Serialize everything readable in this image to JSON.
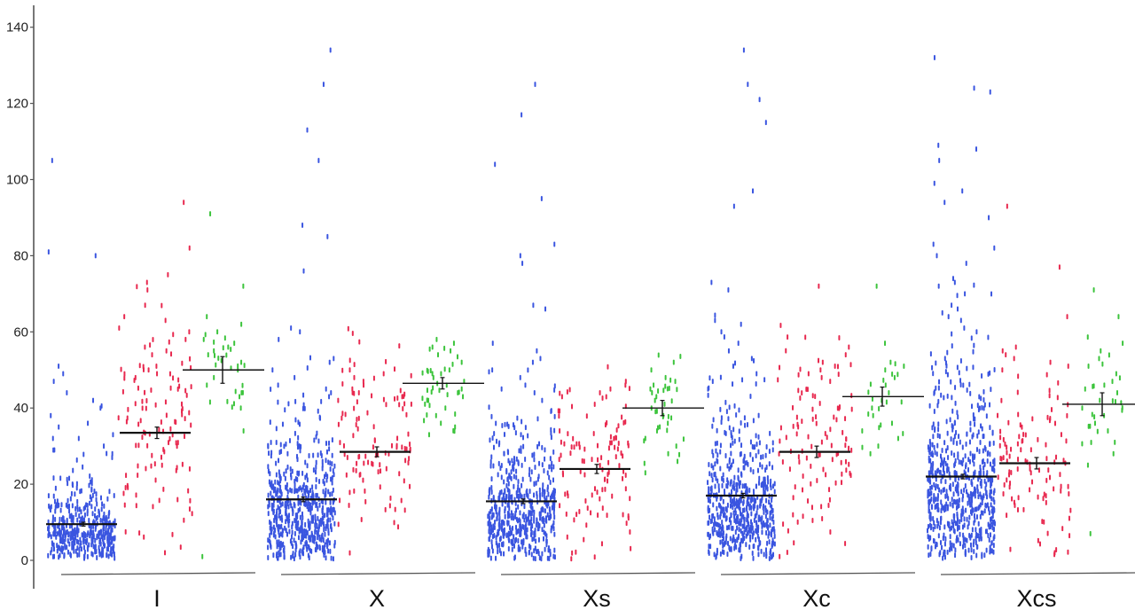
{
  "chart_data": {
    "type": "scatter",
    "subtype": "dot-strip-plot",
    "title": "",
    "xlabel": "",
    "ylabel": "",
    "ylim": [
      0,
      145
    ],
    "yticks": [
      0,
      20,
      40,
      60,
      80,
      100,
      120,
      140
    ],
    "grid": false,
    "legend": "none",
    "series_colors": [
      "#3a55e0",
      "#e8294f",
      "#3cc43c"
    ],
    "groups": [
      {
        "label": "I",
        "strips": [
          {
            "color": "#3a55e0",
            "mean": 9.5,
            "sem": 0.5,
            "count": 420,
            "outliers": [
              105,
              81,
              80,
              51,
              49,
              47,
              44,
              42,
              40,
              38,
              36,
              35,
              33,
              32,
              30,
              29,
              28,
              27
            ]
          },
          {
            "color": "#e8294f",
            "mean": 33.5,
            "sem": 1.5,
            "count": 110,
            "outliers": [
              94,
              82,
              75,
              73,
              71,
              67,
              63,
              61,
              60,
              58,
              56,
              55,
              54,
              51,
              50,
              49,
              48
            ]
          },
          {
            "color": "#3cc43c",
            "mean": 50.0,
            "sem": 3.5,
            "count": 20,
            "outliers": [
              91,
              72,
              64,
              62,
              60,
              58,
              57,
              56,
              55,
              54,
              52,
              50,
              48,
              46,
              44,
              43,
              40,
              34,
              1
            ]
          }
        ]
      },
      {
        "label": "X",
        "strips": [
          {
            "color": "#3a55e0",
            "mean": 16.0,
            "sem": 0.6,
            "count": 560,
            "outliers": [
              134,
              125,
              113,
              105,
              88,
              85,
              76,
              61,
              60,
              58,
              53,
              52,
              50,
              48,
              46,
              45,
              44,
              43
            ]
          },
          {
            "color": "#e8294f",
            "mean": 28.5,
            "sem": 1.3,
            "count": 105,
            "outliers": [
              50,
              49,
              48,
              47,
              46,
              45,
              44,
              43
            ]
          },
          {
            "color": "#3cc43c",
            "mean": 46.5,
            "sem": 1.5,
            "count": 25,
            "outliers": [
              58,
              57,
              56,
              55,
              54,
              52,
              50,
              49,
              48,
              47,
              46,
              45,
              44,
              43,
              42,
              41,
              40,
              38,
              36,
              35,
              33
            ]
          }
        ]
      },
      {
        "label": "Xs",
        "strips": [
          {
            "color": "#3a55e0",
            "mean": 15.5,
            "sem": 0.6,
            "count": 520,
            "outliers": [
              125,
              117,
              104,
              95,
              83,
              80,
              78,
              67,
              66,
              57,
              55,
              53,
              52,
              50,
              48,
              46,
              45,
              44,
              42
            ]
          },
          {
            "color": "#e8294f",
            "mean": 24.0,
            "sem": 1.2,
            "count": 110,
            "outliers": [
              47,
              46,
              45,
              44,
              43
            ]
          },
          {
            "color": "#3cc43c",
            "mean": 40.0,
            "sem": 2.0,
            "count": 22,
            "outliers": [
              52,
              50,
              48,
              47,
              46,
              45,
              44,
              43,
              42,
              41,
              40,
              38,
              36,
              34,
              32,
              30,
              28,
              26,
              23
            ]
          }
        ]
      },
      {
        "label": "Xc",
        "strips": [
          {
            "color": "#3a55e0",
            "mean": 17.0,
            "sem": 0.6,
            "count": 560,
            "outliers": [
              134,
              125,
              121,
              115,
              97,
              93,
              73,
              71,
              63,
              62,
              60,
              57,
              55,
              53,
              51,
              49,
              47,
              45
            ]
          },
          {
            "color": "#e8294f",
            "mean": 28.5,
            "sem": 1.5,
            "count": 105,
            "outliers": [
              72,
              56,
              54,
              52,
              51,
              50,
              49,
              48,
              47
            ]
          },
          {
            "color": "#3cc43c",
            "mean": 43.0,
            "sem": 2.5,
            "count": 15,
            "outliers": [
              72,
              57,
              52,
              51,
              50,
              48,
              46,
              44,
              42,
              40,
              38,
              36,
              34,
              32,
              30,
              28
            ]
          }
        ]
      },
      {
        "label": "Xcs",
        "strips": [
          {
            "color": "#3a55e0",
            "mean": 22.0,
            "sem": 0.6,
            "count": 620,
            "outliers": [
              132,
              124,
              123,
              109,
              108,
              105,
              99,
              97,
              94,
              90,
              83,
              82,
              80,
              78,
              74,
              73,
              72,
              70,
              67,
              66,
              65,
              64,
              63,
              61,
              60
            ]
          },
          {
            "color": "#e8294f",
            "mean": 25.5,
            "sem": 1.5,
            "count": 105,
            "outliers": [
              93,
              77,
              64,
              56,
              55,
              54,
              53,
              52,
              51,
              50
            ]
          },
          {
            "color": "#3cc43c",
            "mean": 41.0,
            "sem": 3.0,
            "count": 18,
            "outliers": [
              71,
              64,
              57,
              55,
              53,
              51,
              49,
              47,
              46,
              45,
              44,
              42,
              40,
              38,
              36,
              34,
              31,
              28,
              25,
              7
            ]
          }
        ]
      }
    ]
  }
}
